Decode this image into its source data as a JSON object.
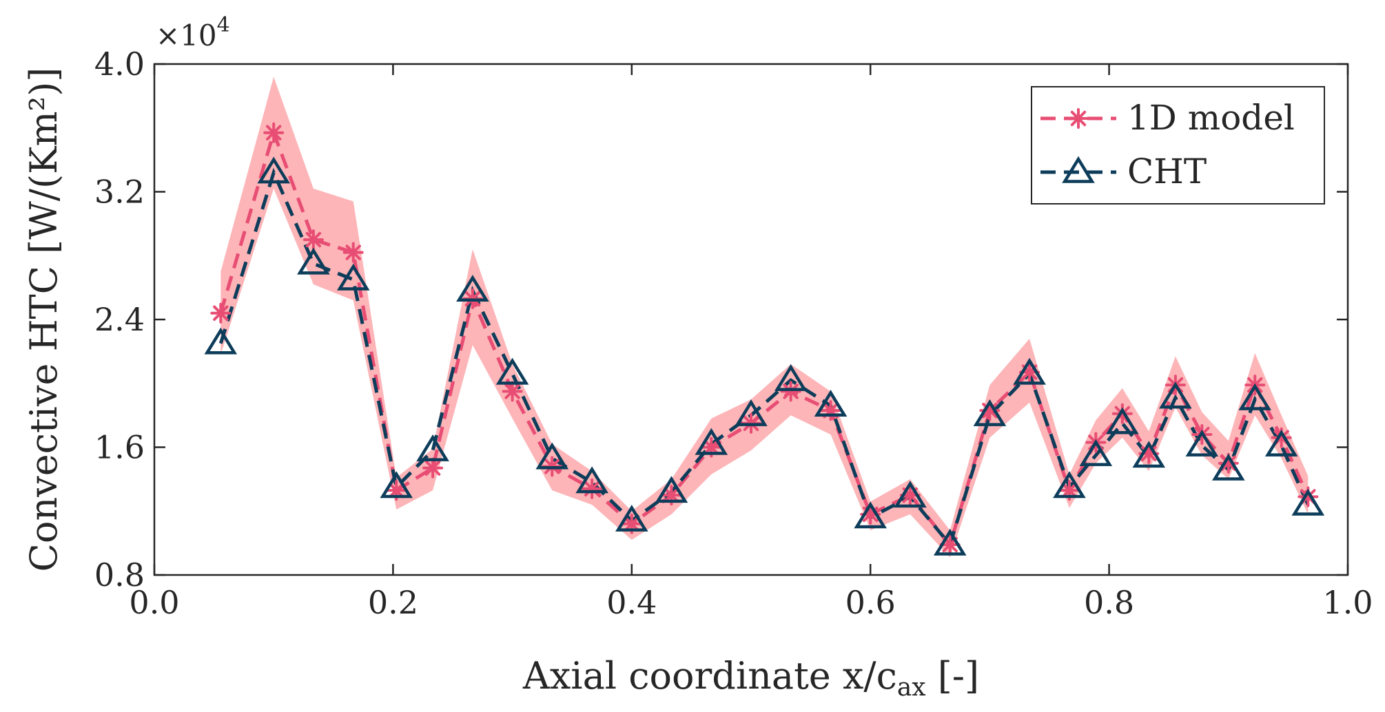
{
  "chart_data": {
    "type": "line",
    "xlabel": "Axial coordinate x/c",
    "xlabel_sub": "ax",
    "xlabel_suffix": " [-]",
    "ylabel": "Convective HTC [W/(Km²)]",
    "y_multiplier": "×10",
    "y_multiplier_exp": "4",
    "xlim": [
      0.0,
      1.0
    ],
    "ylim": [
      0.8,
      4.0
    ],
    "xticks": [
      0.0,
      0.2,
      0.4,
      0.6,
      0.8,
      1.0
    ],
    "xtick_labels": [
      "0.0",
      "0.2",
      "0.4",
      "0.6",
      "0.8",
      "1.0"
    ],
    "yticks": [
      0.8,
      1.6,
      2.4,
      3.2,
      4.0
    ],
    "ytick_labels": [
      "0.8",
      "1.6",
      "2.4",
      "3.2",
      "4.0"
    ],
    "legend_position": "top-right",
    "colors": {
      "model": "#e84d73",
      "band": "#fdb5b8",
      "cht": "#0d3d5a",
      "axis": "#262626"
    },
    "x": [
      0.0556,
      0.1,
      0.1333,
      0.1667,
      0.2028,
      0.2333,
      0.2667,
      0.3,
      0.3333,
      0.3667,
      0.4,
      0.4333,
      0.4667,
      0.5,
      0.5333,
      0.5667,
      0.6,
      0.6333,
      0.6667,
      0.7,
      0.7333,
      0.7667,
      0.7889,
      0.8111,
      0.8333,
      0.8556,
      0.8778,
      0.9,
      0.9222,
      0.9444,
      0.9667
    ],
    "series": [
      {
        "name": "1D model",
        "marker": "asterisk",
        "values": [
          2.44,
          3.57,
          2.9,
          2.82,
          1.33,
          1.47,
          2.53,
          1.95,
          1.48,
          1.34,
          1.12,
          1.3,
          1.6,
          1.75,
          1.95,
          1.83,
          1.18,
          1.3,
          0.99,
          1.83,
          2.07,
          1.33,
          1.63,
          1.81,
          1.56,
          1.99,
          1.68,
          1.5,
          1.99,
          1.66,
          1.29
        ],
        "band_upper": [
          2.7,
          3.92,
          3.22,
          3.14,
          1.41,
          1.59,
          2.84,
          2.12,
          1.62,
          1.45,
          1.2,
          1.4,
          1.78,
          1.9,
          2.12,
          1.95,
          1.26,
          1.4,
          1.08,
          1.99,
          2.28,
          1.43,
          1.77,
          1.97,
          1.7,
          2.17,
          1.82,
          1.64,
          2.19,
          1.8,
          1.42
        ],
        "band_lower": [
          2.18,
          3.22,
          2.62,
          2.52,
          1.21,
          1.33,
          2.24,
          1.78,
          1.33,
          1.24,
          1.02,
          1.18,
          1.43,
          1.58,
          1.8,
          1.68,
          1.08,
          1.18,
          0.91,
          1.66,
          1.88,
          1.22,
          1.5,
          1.66,
          1.45,
          1.85,
          1.55,
          1.4,
          1.8,
          1.53,
          1.18
        ]
      },
      {
        "name": "CHT",
        "marker": "triangle",
        "values": [
          2.25,
          3.32,
          2.75,
          2.65,
          1.35,
          1.58,
          2.58,
          2.06,
          1.53,
          1.38,
          1.14,
          1.32,
          1.62,
          1.8,
          2.02,
          1.86,
          1.16,
          1.29,
          0.99,
          1.8,
          2.06,
          1.35,
          1.55,
          1.75,
          1.54,
          1.91,
          1.61,
          1.46,
          1.9,
          1.61,
          1.24
        ]
      }
    ]
  }
}
